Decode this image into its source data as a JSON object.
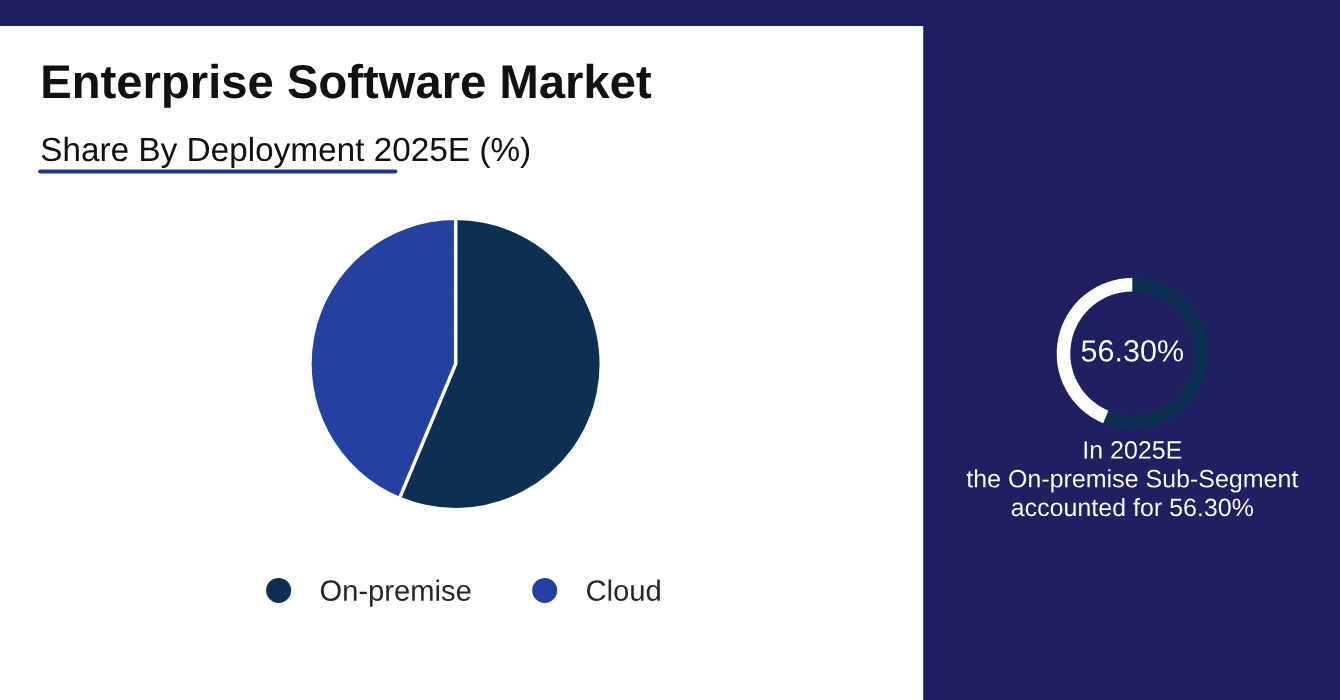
{
  "chart_data": [
    {
      "type": "pie",
      "title": "Enterprise Software Market",
      "subtitle": "Share By Deployment 2025E (%)",
      "categories": [
        "On-premise",
        "Cloud"
      ],
      "values": [
        56.3,
        43.7
      ],
      "colors": [
        "#0d2f52",
        "#2541a0"
      ],
      "legend": "bottom"
    },
    {
      "type": "donut",
      "categories": [
        null,
        null
      ],
      "values": [
        56.3,
        43.7
      ],
      "colors": [
        "#0d2f52",
        "#ffffff"
      ],
      "annotations": [
        "56.30%",
        "In 2025E\nthe On-premise Sub-Segment\naccounted for 56.30%"
      ]
    }
  ]
}
